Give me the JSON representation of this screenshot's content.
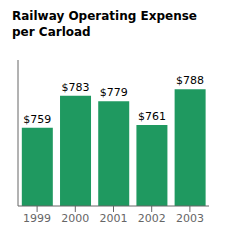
{
  "chart_data": {
    "type": "bar",
    "title": "Railway Operating Expense\nper Carload",
    "categories": [
      "1999",
      "2000",
      "2001",
      "2002",
      "2003"
    ],
    "values": [
      759,
      783,
      779,
      761,
      788
    ],
    "value_labels": [
      "$759",
      "$783",
      "$779",
      "$761",
      "$788"
    ],
    "color": "#1f9960",
    "ylim": [
      700,
      810
    ],
    "grid": false,
    "data_labels": true,
    "tick_labels": "x"
  }
}
